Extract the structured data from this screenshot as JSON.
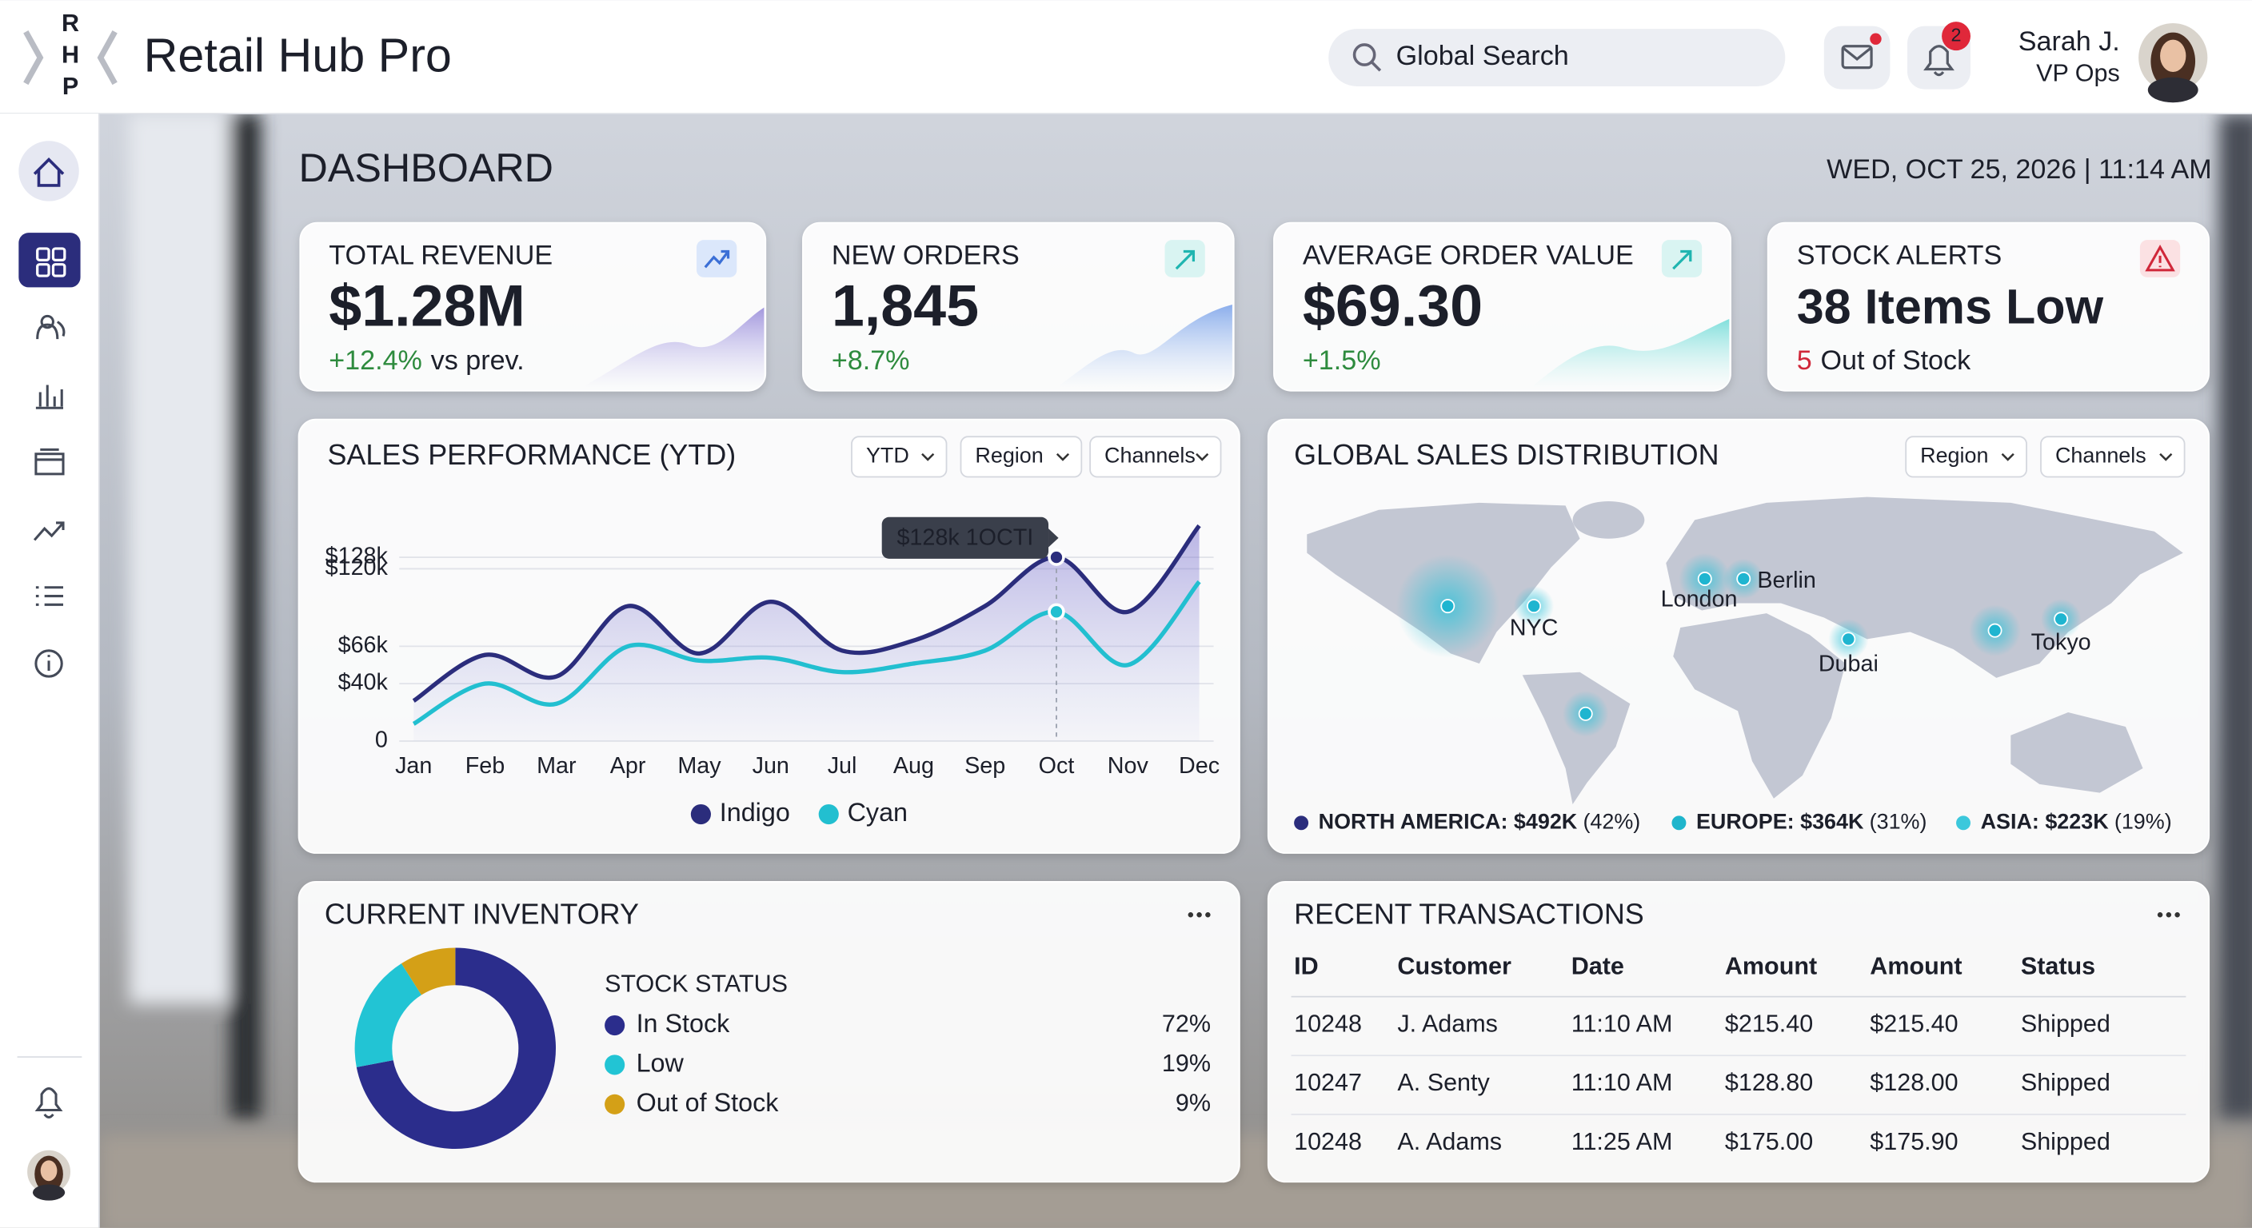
{
  "header": {
    "logo": [
      "R",
      "H",
      "P"
    ],
    "title": "Retail Hub Pro",
    "search_placeholder": "Global Search",
    "notification_count": "2",
    "user": {
      "name": "Sarah J.",
      "role": "VP Ops"
    }
  },
  "dashboard": {
    "title": "DASHBOARD",
    "datetime": "WED, OCT 25, 2026 | 11:14 AM"
  },
  "kpis": [
    {
      "label": "TOTAL REVENUE",
      "value": "$1.28M",
      "change": "+12.4%",
      "note": "vs prev."
    },
    {
      "label": "NEW ORDERS",
      "value": "1,845",
      "change": "+8.7%"
    },
    {
      "label": "AVERAGE ORDER VALUE",
      "value": "$69.30",
      "change": "+1.5%"
    },
    {
      "label": "STOCK ALERTS",
      "value": "38 Items Low",
      "change": "5",
      "note": "Out of Stock"
    }
  ],
  "chart_data": [
    {
      "type": "line",
      "title": "SALES PERFORMANCE (YTD)",
      "filters": [
        "YTD",
        "Region",
        "Channels"
      ],
      "categories": [
        "Jan",
        "Feb",
        "Mar",
        "Apr",
        "May",
        "Jun",
        "Jul",
        "Aug",
        "Sep",
        "Oct",
        "Nov",
        "Dec"
      ],
      "series": [
        {
          "name": "Indigo",
          "color": "#2b2d7c",
          "values": [
            28000,
            60000,
            45000,
            94000,
            61000,
            97000,
            63000,
            70000,
            94000,
            128000,
            90000,
            150000
          ]
        },
        {
          "name": "Cyan",
          "color": "#22bfd0",
          "values": [
            12000,
            40000,
            26000,
            66000,
            56000,
            58000,
            48000,
            54000,
            63000,
            90000,
            53000,
            111000
          ]
        }
      ],
      "ylim": [
        0,
        170000
      ],
      "yticks": [
        {
          "value": 120000,
          "label": "$120k"
        },
        {
          "value": 128000,
          "label": "$128k"
        },
        {
          "value": 66000,
          "label": "$66k"
        },
        {
          "value": 40000,
          "label": "$40k"
        },
        0
      ],
      "annotation": "$128k 1OCTI",
      "grid": true
    },
    {
      "type": "pie",
      "title": "CURRENT INVENTORY",
      "legend_title": "STOCK STATUS",
      "categories": [
        "In Stock",
        "Low",
        "Out of Stock"
      ],
      "values": [
        72,
        19,
        9
      ],
      "value_labels": [
        "72%",
        "19%",
        "9%"
      ],
      "colors": [
        "#2b2d8c",
        "#22c4d4",
        "#d4a017"
      ]
    }
  ],
  "map": {
    "title": "GLOBAL SALES DISTRIBUTION",
    "filters": [
      "Region",
      "Channels"
    ],
    "cities": [
      "NYC",
      "London",
      "Berlin",
      "Dubai",
      "Tokyo"
    ],
    "legend": [
      {
        "label": "NORTH AMERICA: $492K",
        "share": "(42%)",
        "color": "#2b2d7c"
      },
      {
        "label": "EUROPE: $364K",
        "share": "(31%)",
        "color": "#1fb5cc"
      },
      {
        "label": "ASIA: $223K",
        "share": "(19%)",
        "color": "#3cc8dc"
      }
    ]
  },
  "transactions": {
    "title": "RECENT TRANSACTIONS",
    "columns": [
      "ID",
      "Customer",
      "Date",
      "Amount",
      "Amount",
      "Status"
    ],
    "rows": [
      [
        "10248",
        "J. Adams",
        "11:10 AM",
        "$215.40",
        "$215.40",
        "Shipped"
      ],
      [
        "10247",
        "A. Senty",
        "11:10 AM",
        "$128.80",
        "$128.00",
        "Shipped"
      ],
      [
        "10248",
        "A. Adams",
        "11:25 AM",
        "$175.00",
        "$175.90",
        "Shipped"
      ]
    ]
  }
}
